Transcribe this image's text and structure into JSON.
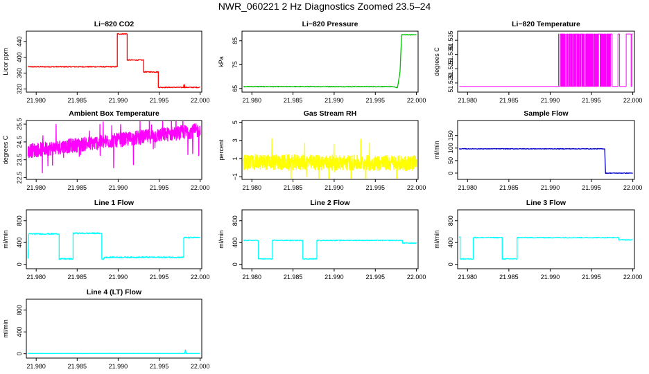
{
  "page": {
    "title": "NWR_060221  2 Hz Diagnostics Zoomed 23.5–24"
  },
  "x_axis": {
    "ticks": [
      21.98,
      21.985,
      21.99,
      21.995,
      22.0
    ],
    "tick_labels": [
      "21.980",
      "21.985",
      "21.990",
      "21.995",
      "22.000"
    ],
    "xlim": [
      21.9788,
      22.0002
    ]
  },
  "chart_data": [
    {
      "type": "line",
      "title": "Li−820 CO2",
      "ylabel": "Licor ppm",
      "color": "#ff0000",
      "ylim": [
        312,
        466
      ],
      "yticks": [
        320,
        360,
        400,
        440
      ],
      "ytick_labels": [
        "320",
        "360",
        "400",
        "440"
      ],
      "series": [
        {
          "x": [
            21.979,
            21.9899,
            21.9899,
            21.9911,
            21.9911,
            21.9931,
            21.9931,
            21.9949,
            21.9949,
            21.998,
            21.998,
            21.9981,
            21.9981,
            22.0
          ],
          "y": [
            376,
            376,
            459,
            459,
            393,
            393,
            363,
            363,
            324,
            324,
            330,
            330,
            324,
            324
          ]
        }
      ],
      "noise": 1.2
    },
    {
      "type": "line",
      "title": "Li−820 Pressure",
      "ylabel": "kPa",
      "color": "#00c000",
      "ylim": [
        63.5,
        89
      ],
      "yticks": [
        65,
        75,
        85
      ],
      "ytick_labels": [
        "65",
        "75",
        "85"
      ],
      "series": [
        {
          "x": [
            21.979,
            21.997,
            21.9977,
            21.998,
            21.9982,
            22.0
          ],
          "y": [
            65.8,
            65.8,
            65.4,
            72,
            87.5,
            87.5
          ]
        }
      ],
      "noise": 0.15
    },
    {
      "type": "spikes",
      "title": "Li−820 Temperature",
      "ylabel": "degrees C",
      "color": "#ff00ff",
      "ylim": [
        51.5168,
        51.5382
      ],
      "yticks": [
        51.52,
        51.525,
        51.53,
        51.535
      ],
      "ytick_labels": [
        "51.520",
        "51.525",
        "51.530",
        "51.535"
      ],
      "base": 51.5188,
      "top": 51.5372,
      "series": [
        {
          "x": [
            21.979,
            22.0
          ],
          "y": [
            51.5188,
            51.5188
          ]
        }
      ],
      "spike_x": [
        21.9955,
        21.9962,
        21.9969,
        21.9975,
        21.9982,
        21.9984,
        21.9992,
        21.9998,
        21.9999
      ]
    },
    {
      "type": "noisy",
      "title": "Ambient Box Temperature",
      "ylabel": "degrees C",
      "color": "#ff00ff",
      "ylim": [
        22.4,
        25.7
      ],
      "yticks": [
        22.5,
        23.5,
        24.5,
        25.5
      ],
      "ytick_labels": [
        "22.5",
        "23.5",
        "24.5",
        "25.5"
      ],
      "series": [
        {
          "x": [
            21.979,
            22.0
          ],
          "y": [
            24.0,
            25.15
          ]
        }
      ],
      "noise": 0.4
    },
    {
      "type": "noisy",
      "title": "Gas Stream RH",
      "ylabel": "percent",
      "color": "#ffff00",
      "ylim": [
        -1.3,
        5.2
      ],
      "yticks": [
        -1,
        1,
        3,
        5
      ],
      "ytick_labels": [
        "−1",
        "1",
        "3",
        "5"
      ],
      "series": [
        {
          "x": [
            21.979,
            22.0
          ],
          "y": [
            0.6,
            0.5
          ]
        }
      ],
      "noise": 0.85
    },
    {
      "type": "line",
      "title": "Sample Flow",
      "ylabel": "ml/min",
      "color": "#0000c8",
      "ylim": [
        -25,
        210
      ],
      "yticks": [
        0,
        50,
        100,
        150
      ],
      "ytick_labels": [
        "0",
        "50",
        "100",
        "150"
      ],
      "series": [
        {
          "x": [
            21.979,
            21.9966,
            21.9967,
            22.0
          ],
          "y": [
            97,
            97,
            0,
            0
          ]
        }
      ],
      "noise": 1.2
    },
    {
      "type": "line",
      "title": "Line 1 Flow",
      "ylabel": "ml/min",
      "color": "#00ffff",
      "ylim": [
        -80,
        1000
      ],
      "yticks": [
        0,
        400,
        800
      ],
      "ytick_labels": [
        "0",
        "400",
        "800"
      ],
      "series": [
        {
          "x": [
            21.979,
            21.9791,
            21.9828,
            21.9828,
            21.9845,
            21.9845,
            21.988,
            21.988,
            21.9883,
            21.9883,
            21.998,
            21.998,
            22.0
          ],
          "y": [
            100,
            560,
            560,
            100,
            100,
            570,
            570,
            100,
            100,
            130,
            130,
            490,
            490
          ]
        }
      ],
      "noise": 12
    },
    {
      "type": "line",
      "title": "Line 2 Flow",
      "ylabel": "ml/min",
      "color": "#00ffff",
      "ylim": [
        -80,
        1000
      ],
      "yticks": [
        0,
        400,
        800
      ],
      "ytick_labels": [
        "0",
        "400",
        "800"
      ],
      "series": [
        {
          "x": [
            21.979,
            21.9808,
            21.9808,
            21.9825,
            21.9825,
            21.9862,
            21.9862,
            21.9879,
            21.9879,
            21.9983,
            21.9983,
            22.0
          ],
          "y": [
            440,
            440,
            100,
            100,
            440,
            440,
            100,
            100,
            440,
            440,
            390,
            390
          ]
        }
      ],
      "noise": 8
    },
    {
      "type": "line",
      "title": "Line 3 Flow",
      "ylabel": "ml/min",
      "color": "#00ffff",
      "ylim": [
        -80,
        1000
      ],
      "yticks": [
        0,
        400,
        800
      ],
      "ytick_labels": [
        "0",
        "400",
        "800"
      ],
      "series": [
        {
          "x": [
            21.979,
            21.9791,
            21.9791,
            21.9807,
            21.9807,
            21.9842,
            21.9842,
            21.986,
            21.986,
            21.9983,
            21.9983,
            22.0
          ],
          "y": [
            500,
            500,
            100,
            100,
            490,
            490,
            100,
            100,
            490,
            490,
            450,
            450
          ]
        }
      ],
      "noise": 8
    },
    {
      "type": "line",
      "title": "Line 4 (LT) Flow",
      "ylabel": "ml/min",
      "color": "#00ffff",
      "ylim": [
        -80,
        1000
      ],
      "yticks": [
        0,
        400,
        800
      ],
      "ytick_labels": [
        "0",
        "400",
        "800"
      ],
      "series": [
        {
          "x": [
            21.979,
            21.9981,
            21.9982,
            21.9983,
            22.0
          ],
          "y": [
            5,
            5,
            70,
            5,
            5
          ]
        }
      ],
      "noise": 2
    }
  ]
}
